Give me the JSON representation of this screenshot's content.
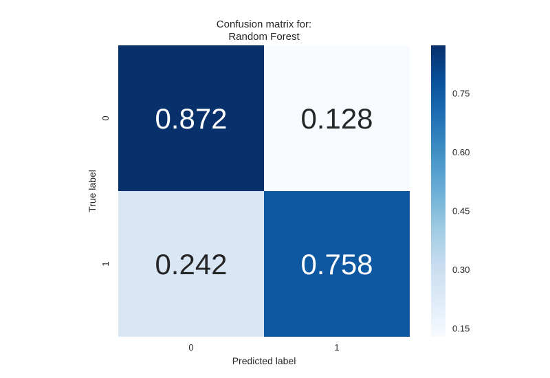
{
  "chart_data": {
    "type": "heatmap",
    "title_lines": [
      "Confusion matrix for:",
      "Random Forest"
    ],
    "xlabel": "Predicted label",
    "ylabel": "True label",
    "x_categories": [
      "0",
      "1"
    ],
    "y_categories": [
      "0",
      "1"
    ],
    "values": [
      [
        0.872,
        0.128
      ],
      [
        0.242,
        0.758
      ]
    ],
    "value_labels": [
      [
        "0.872",
        "0.128"
      ],
      [
        "0.242",
        "0.758"
      ]
    ],
    "colormap": "Blues",
    "colorbar": {
      "range": [
        0.128,
        0.872
      ],
      "ticks": [
        0.15,
        0.3,
        0.45,
        0.6,
        0.75
      ],
      "tick_labels": [
        "0.15",
        "0.30",
        "0.45",
        "0.60",
        "0.75"
      ]
    },
    "grid": false,
    "cell_text_colors": [
      [
        "#ffffff",
        "#262626"
      ],
      [
        "#262626",
        "#ffffff"
      ]
    ]
  }
}
